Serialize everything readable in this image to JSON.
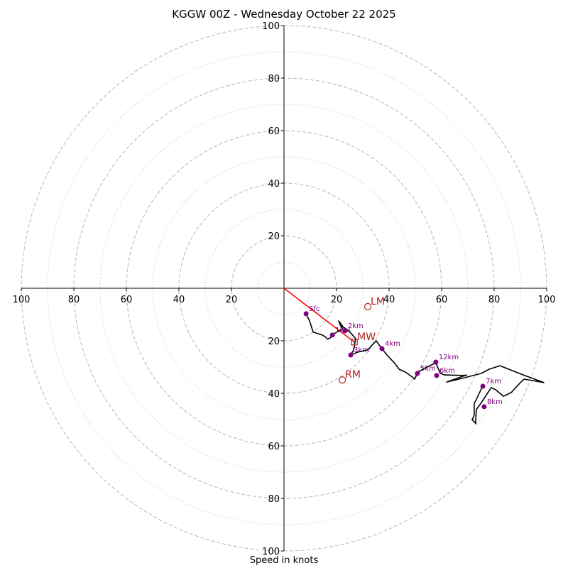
{
  "chart_data": {
    "type": "hodograph",
    "title": "KGGW 00Z - Wednesday October 22 2025",
    "xlabel": "Speed in knots",
    "xlim": [
      -100,
      100
    ],
    "ylim": [
      -100,
      100
    ],
    "major_rings": [
      20,
      40,
      60,
      80,
      100
    ],
    "minor_rings": [
      10,
      30,
      50,
      70,
      90
    ],
    "x_ticks": [
      {
        "value": -100,
        "label": "100"
      },
      {
        "value": -80,
        "label": "80"
      },
      {
        "value": -60,
        "label": "60"
      },
      {
        "value": -40,
        "label": "40"
      },
      {
        "value": -20,
        "label": "20"
      },
      {
        "value": 20,
        "label": "20"
      },
      {
        "value": 40,
        "label": "40"
      },
      {
        "value": 60,
        "label": "60"
      },
      {
        "value": 80,
        "label": "80"
      },
      {
        "value": 100,
        "label": "100"
      }
    ],
    "y_ticks": [
      {
        "value": 100,
        "label": "100"
      },
      {
        "value": 80,
        "label": "80"
      },
      {
        "value": 60,
        "label": "60"
      },
      {
        "value": 40,
        "label": "40"
      },
      {
        "value": 20,
        "label": "20"
      },
      {
        "value": -20,
        "label": "20"
      },
      {
        "value": -40,
        "label": "40"
      },
      {
        "value": -60,
        "label": "60"
      },
      {
        "value": -80,
        "label": "80"
      },
      {
        "value": -100,
        "label": "100"
      }
    ],
    "trace": [
      [
        8.4,
        -9.7
      ],
      [
        9.7,
        -12.4
      ],
      [
        11.1,
        -16.7
      ],
      [
        14.6,
        -17.8
      ],
      [
        15.9,
        -18.6
      ],
      [
        16.5,
        -19.4
      ],
      [
        17.6,
        -18.9
      ],
      [
        18.4,
        -17.8
      ],
      [
        20.3,
        -16.5
      ],
      [
        21.6,
        -15.9
      ],
      [
        22.4,
        -15.4
      ],
      [
        21.4,
        -14.0
      ],
      [
        20.8,
        -12.4
      ],
      [
        22.4,
        -14.6
      ],
      [
        25.1,
        -16.7
      ],
      [
        27.3,
        -19.2
      ],
      [
        27.0,
        -20.5
      ],
      [
        26.8,
        -21.6
      ],
      [
        26.5,
        -23.5
      ],
      [
        25.4,
        -25.4
      ],
      [
        28.1,
        -24.3
      ],
      [
        31.9,
        -23.5
      ],
      [
        34.1,
        -21.0
      ],
      [
        35.1,
        -20.0
      ],
      [
        36.8,
        -22.4
      ],
      [
        39.2,
        -25.4
      ],
      [
        42.2,
        -28.6
      ],
      [
        43.8,
        -30.8
      ],
      [
        46.2,
        -31.9
      ],
      [
        48.9,
        -33.8
      ],
      [
        49.7,
        -34.6
      ],
      [
        51.1,
        -31.9
      ],
      [
        54.3,
        -30.0
      ],
      [
        57.8,
        -28.4
      ],
      [
        58.6,
        -30.3
      ],
      [
        59.5,
        -32.4
      ],
      [
        61.1,
        -33.0
      ],
      [
        68.6,
        -33.2
      ],
      [
        69.5,
        -33.0
      ],
      [
        61.9,
        -35.7
      ],
      [
        67.8,
        -34.3
      ],
      [
        75.1,
        -32.4
      ],
      [
        78.1,
        -30.8
      ],
      [
        82.2,
        -29.5
      ],
      [
        91.1,
        -33.0
      ],
      [
        98.9,
        -35.9
      ],
      [
        91.4,
        -34.6
      ],
      [
        90.0,
        -35.9
      ],
      [
        86.5,
        -39.7
      ],
      [
        83.5,
        -41.1
      ],
      [
        80.5,
        -38.6
      ],
      [
        78.9,
        -37.8
      ],
      [
        74.6,
        -44.3
      ],
      [
        73.2,
        -46.2
      ],
      [
        73.0,
        -50.0
      ],
      [
        73.0,
        -51.6
      ],
      [
        72.7,
        -51.1
      ],
      [
        72.4,
        -50.8
      ],
      [
        71.6,
        -50.0
      ],
      [
        72.4,
        -48.4
      ],
      [
        72.4,
        -43.8
      ],
      [
        73.2,
        -42.4
      ],
      [
        75.7,
        -37.0
      ]
    ],
    "height_markers": [
      {
        "label": "Sfc",
        "u": 8.4,
        "v": -9.7
      },
      {
        "label": "1km",
        "u": 18.4,
        "v": -17.8
      },
      {
        "label": "2km",
        "u": 23.2,
        "v": -16.2
      },
      {
        "label": "3km",
        "u": 25.4,
        "v": -25.4
      },
      {
        "label": "4km",
        "u": 37.3,
        "v": -23.0
      },
      {
        "label": "5km",
        "u": 50.8,
        "v": -32.4
      },
      {
        "label": "6km",
        "u": 58.1,
        "v": -33.2
      },
      {
        "label": "7km",
        "u": 75.7,
        "v": -37.3
      },
      {
        "label": "8km",
        "u": 76.2,
        "v": -45.1
      },
      {
        "label": "12km",
        "u": 57.8,
        "v": -28.1
      }
    ],
    "storm_motion_vector": {
      "from": [
        0,
        0
      ],
      "to": [
        26.8,
        -20.5
      ]
    },
    "motion_markers": [
      {
        "label": "LM",
        "u": 31.9,
        "v": -7.0,
        "shape": "circle"
      },
      {
        "label": "MW",
        "u": 26.8,
        "v": -20.5,
        "shape": "square"
      },
      {
        "label": "RM",
        "u": 22.2,
        "v": -34.9,
        "shape": "circle"
      }
    ],
    "colors": {
      "trace": "#000000",
      "markers": "#800080",
      "motion": "#b22222",
      "vector": "#ff0000",
      "ring": "#bbbbbb",
      "axis": "#000000"
    }
  }
}
